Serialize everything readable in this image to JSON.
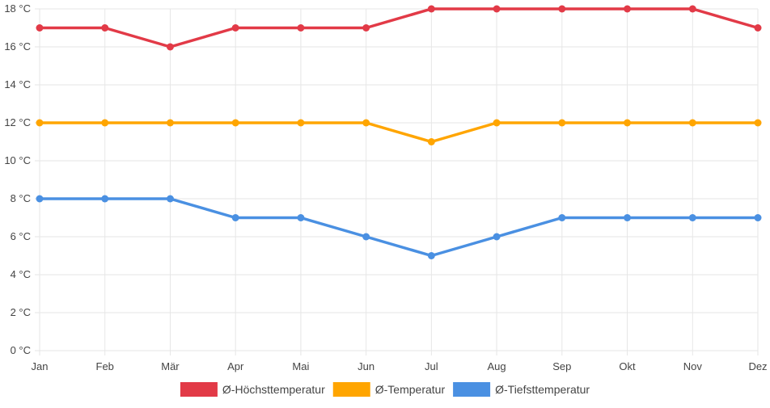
{
  "chart_data": {
    "type": "line",
    "categories": [
      "Jan",
      "Feb",
      "Mär",
      "Apr",
      "Mai",
      "Jun",
      "Jul",
      "Aug",
      "Sep",
      "Okt",
      "Nov",
      "Dez"
    ],
    "series": [
      {
        "name": "Ø-Höchsttemperatur",
        "color": "#e23a47",
        "values": [
          17,
          17,
          16,
          17,
          17,
          17,
          18,
          18,
          18,
          18,
          18,
          17
        ]
      },
      {
        "name": "Ø-Temperatur",
        "color": "#ffa500",
        "values": [
          12,
          12,
          12,
          12,
          12,
          12,
          11,
          12,
          12,
          12,
          12,
          12
        ]
      },
      {
        "name": "Ø-Tiefsttemperatur",
        "color": "#4a90e2",
        "values": [
          8,
          8,
          8,
          7,
          7,
          6,
          5,
          6,
          7,
          7,
          7,
          7
        ]
      }
    ],
    "y_ticks": [
      "0 °C",
      "2 °C",
      "4 °C",
      "6 °C",
      "8 °C",
      "10 °C",
      "12 °C",
      "14 °C",
      "16 °C",
      "18 °C"
    ],
    "ylim": [
      0,
      18
    ],
    "ystep": 2,
    "grid": true,
    "legend_position": "bottom"
  }
}
